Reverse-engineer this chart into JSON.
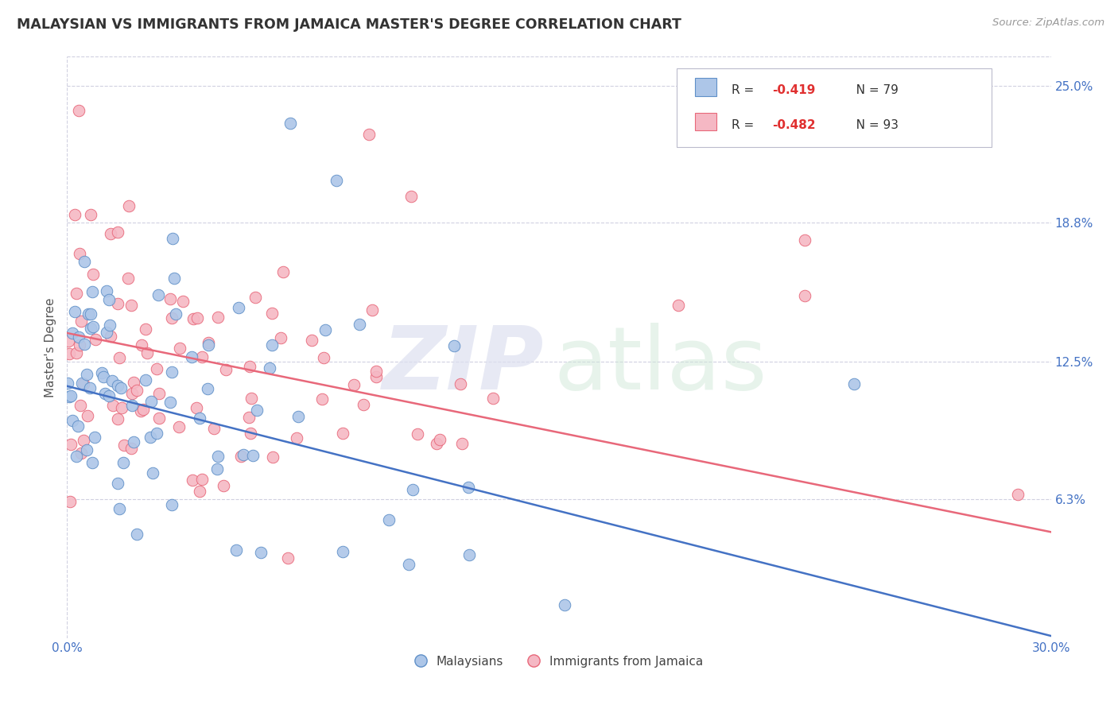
{
  "title": "MALAYSIAN VS IMMIGRANTS FROM JAMAICA MASTER'S DEGREE CORRELATION CHART",
  "source": "Source: ZipAtlas.com",
  "ylabel": "Master's Degree",
  "xlim": [
    0.0,
    0.3
  ],
  "ylim": [
    0.0,
    0.263
  ],
  "blue_color": "#adc6e8",
  "pink_color": "#f5b8c4",
  "blue_edge_color": "#6090c8",
  "pink_edge_color": "#e8687a",
  "blue_line_color": "#4472c4",
  "pink_line_color": "#e8687a",
  "title_color": "#333333",
  "axis_tick_color": "#4472c4",
  "grid_color": "#d0d0e0",
  "watermark_zip_color": "#dde0f0",
  "watermark_atlas_color": "#d8ece0",
  "legend_box_color": "#ddddee",
  "r_value_color": "#e03030",
  "legend_blue_label": "R = -0.419   N = 79",
  "legend_pink_label": "R = -0.482   N = 93",
  "bottom_legend_blue": "Malaysians",
  "bottom_legend_pink": "Immigrants from Jamaica",
  "blue_line_x0": 0.0,
  "blue_line_y0": 0.114,
  "blue_line_x1": 0.3,
  "blue_line_y1": 0.001,
  "pink_line_x0": 0.0,
  "pink_line_y0": 0.138,
  "pink_line_x1": 0.3,
  "pink_line_y1": 0.048,
  "ytick_positions": [
    0.063,
    0.125,
    0.188,
    0.25
  ],
  "ytick_labels": [
    "6.3%",
    "12.5%",
    "18.8%",
    "25.0%"
  ],
  "xtick_positions": [
    0.0,
    0.3
  ],
  "xtick_labels": [
    "0.0%",
    "30.0%"
  ]
}
